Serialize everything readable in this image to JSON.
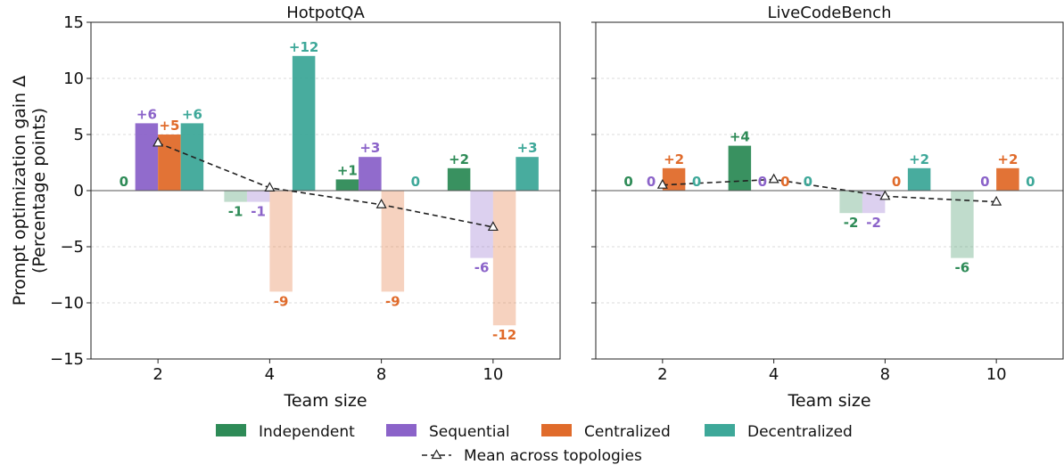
{
  "chart_data": {
    "type": "bar",
    "ylabel_line1": "Prompt optimization gain Δ",
    "ylabel_line2": "(Percentage points)",
    "ylim": [
      -15,
      15
    ],
    "yticks": [
      15,
      10,
      5,
      0,
      -5,
      -10,
      -15
    ],
    "ytick_labels": [
      "15",
      "10",
      "5",
      "0",
      "−5",
      "−10",
      "−15"
    ],
    "grid": true,
    "legend": {
      "placement": "bottom-center",
      "series_entries": [
        "Independent",
        "Sequential",
        "Centralized",
        "Decentralized"
      ],
      "mean_entry": "Mean across topologies"
    },
    "series": [
      {
        "name": "Independent",
        "color": "#2e8b57"
      },
      {
        "name": "Sequential",
        "color": "#8b63c9"
      },
      {
        "name": "Centralized",
        "color": "#e06b2b"
      },
      {
        "name": "Decentralized",
        "color": "#3ea899"
      }
    ],
    "panels": [
      {
        "title": "HotpotQA",
        "xlabel": "Team size",
        "categories": [
          "2",
          "4",
          "8",
          "10"
        ],
        "values": [
          [
            0,
            6,
            5,
            6
          ],
          [
            -1,
            -1,
            -9,
            12
          ],
          [
            1,
            3,
            -9,
            0
          ],
          [
            2,
            -6,
            -12,
            3
          ]
        ],
        "labels": [
          [
            "0",
            "+6",
            "+5",
            "+6"
          ],
          [
            "-1",
            "-1",
            "-9",
            "+12"
          ],
          [
            "+1",
            "+3",
            "-9",
            "0"
          ],
          [
            "+2",
            "-6",
            "-12",
            "+3"
          ]
        ],
        "mean": [
          4.25,
          0.25,
          -1.25,
          -3.25
        ]
      },
      {
        "title": "LiveCodeBench",
        "xlabel": "Team size",
        "categories": [
          "2",
          "4",
          "8",
          "10"
        ],
        "values": [
          [
            0,
            0,
            2,
            0
          ],
          [
            4,
            0,
            0,
            0
          ],
          [
            -2,
            -2,
            0,
            2
          ],
          [
            -6,
            0,
            2,
            0
          ]
        ],
        "labels": [
          [
            "0",
            "0",
            "+2",
            "0"
          ],
          [
            "+4",
            "0",
            "0",
            "0"
          ],
          [
            "-2",
            "-2",
            "0",
            "+2"
          ],
          [
            "-6",
            "0",
            "+2",
            "0"
          ]
        ],
        "mean": [
          0.5,
          1,
          -0.5,
          -1
        ]
      }
    ]
  }
}
